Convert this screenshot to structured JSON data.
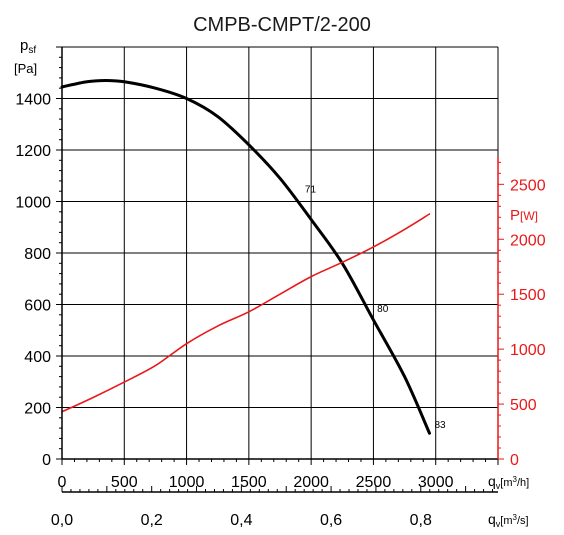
{
  "chart_data": {
    "type": "line",
    "title": "CMPB-CMPT/2-200",
    "ylabel_left": {
      "main": "p",
      "sub": "sf",
      "unit": "[Pa]"
    },
    "ylabel_right": {
      "main": "P",
      "unit": "[W]"
    },
    "xlabel_primary": {
      "main": "q",
      "sub": "v",
      "unit": "[m",
      "sup": "3",
      "tail": "/h]"
    },
    "xlabel_secondary": {
      "main": "q",
      "sub": "v",
      "unit": "[m",
      "sup": "3",
      "tail": "/s]"
    },
    "xlim": [
      0,
      3500
    ],
    "ylim_left": [
      0,
      1600
    ],
    "ylim_right": [
      0,
      3750
    ],
    "x_ticks": [
      0,
      500,
      1000,
      1500,
      2000,
      2500,
      3000
    ],
    "x_tick_labels": [
      "0",
      "500",
      "1000",
      "1500",
      "2000",
      "2500",
      "3000"
    ],
    "x2_ticks": [
      0.0,
      0.2,
      0.4,
      0.6,
      0.8
    ],
    "x2_tick_labels": [
      "0,0",
      "0,2",
      "0,4",
      "0,6",
      "0,8"
    ],
    "y_ticks_left": [
      0,
      200,
      400,
      600,
      800,
      1000,
      1200,
      1400
    ],
    "y_tick_labels_left": [
      "0",
      "200",
      "400",
      "600",
      "800",
      "1000",
      "1200",
      "1400"
    ],
    "y_ticks_right": [
      0,
      500,
      1000,
      1500,
      2000,
      2500
    ],
    "y_tick_labels_right": [
      "0",
      "500",
      "1000",
      "1500",
      "2000",
      "2500"
    ],
    "grid": true,
    "colors": {
      "pressure": "#000000",
      "power": "#e8191a",
      "grid": "#000000",
      "axis_right": "#e8191a"
    },
    "series": [
      {
        "axis": "left",
        "x": [
          0,
          200,
          350,
          500,
          750,
          1000,
          1250,
          1500,
          1750,
          2000,
          2250,
          2500,
          2750,
          2950
        ],
        "y": [
          1445,
          1465,
          1470,
          1465,
          1440,
          1400,
          1330,
          1220,
          1090,
          930,
          760,
          540,
          320,
          100
        ]
      },
      {
        "axis": "right",
        "x": [
          0,
          250,
          500,
          750,
          1000,
          1250,
          1500,
          1750,
          2000,
          2250,
          2500,
          2750,
          2950
        ],
        "y": [
          430,
          560,
          700,
          850,
          1050,
          1210,
          1340,
          1500,
          1660,
          1790,
          1930,
          2090,
          2230
        ]
      }
    ],
    "annotations": [
      {
        "text": "71",
        "x": 1950,
        "y": 1035
      },
      {
        "text": "80",
        "x": 2530,
        "y": 570
      },
      {
        "text": "83",
        "x": 2990,
        "y": 120
      }
    ]
  }
}
